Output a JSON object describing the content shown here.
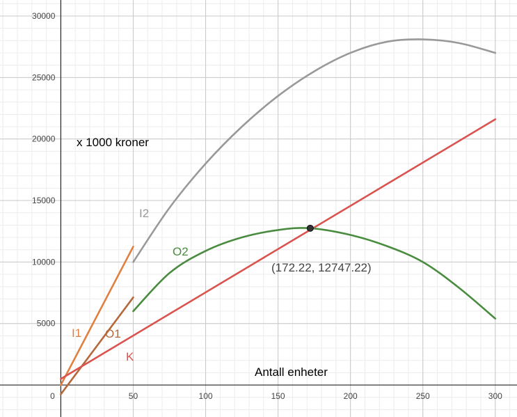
{
  "chart_data": {
    "type": "line",
    "ylabel": "x 1000 kroner",
    "xlabel": "Antall enheter",
    "xlim": [
      -42,
      315
    ],
    "ylim": [
      -2600,
      31300
    ],
    "grid": true,
    "x_ticks": [
      0,
      50,
      100,
      150,
      200,
      250,
      300
    ],
    "y_ticks": [
      5000,
      10000,
      15000,
      20000,
      25000,
      30000
    ],
    "origin_label": "0",
    "series": [
      {
        "name": "I1",
        "color": "#e08040",
        "x": [
          0,
          50
        ],
        "y": [
          0,
          11250
        ]
      },
      {
        "name": "O1",
        "color": "#b5693b",
        "x": [
          0,
          50
        ],
        "y": [
          -750,
          7125
        ]
      },
      {
        "name": "K",
        "color": "#d9534f",
        "x": [
          0,
          300
        ],
        "y": [
          500,
          21600
        ]
      },
      {
        "name": "I2",
        "color": "#999999",
        "x": [
          50,
          75,
          100,
          125,
          150,
          175,
          200,
          225,
          250,
          275,
          300
        ],
        "y": [
          10000,
          14400,
          18000,
          21000,
          23500,
          25500,
          27000,
          27900,
          28100,
          27800,
          27000
        ]
      },
      {
        "name": "O2",
        "color": "#4a8c3f",
        "x": [
          50,
          75,
          100,
          125,
          150,
          172.22,
          200,
          225,
          250,
          275,
          300
        ],
        "y": [
          6000,
          9100,
          10900,
          12000,
          12600,
          12747.22,
          12200,
          11300,
          10000,
          7900,
          5400
        ]
      }
    ],
    "annotations": [
      {
        "text": "(172.22, 12747.22)",
        "x": 172.22,
        "y": 12747.22
      }
    ]
  }
}
